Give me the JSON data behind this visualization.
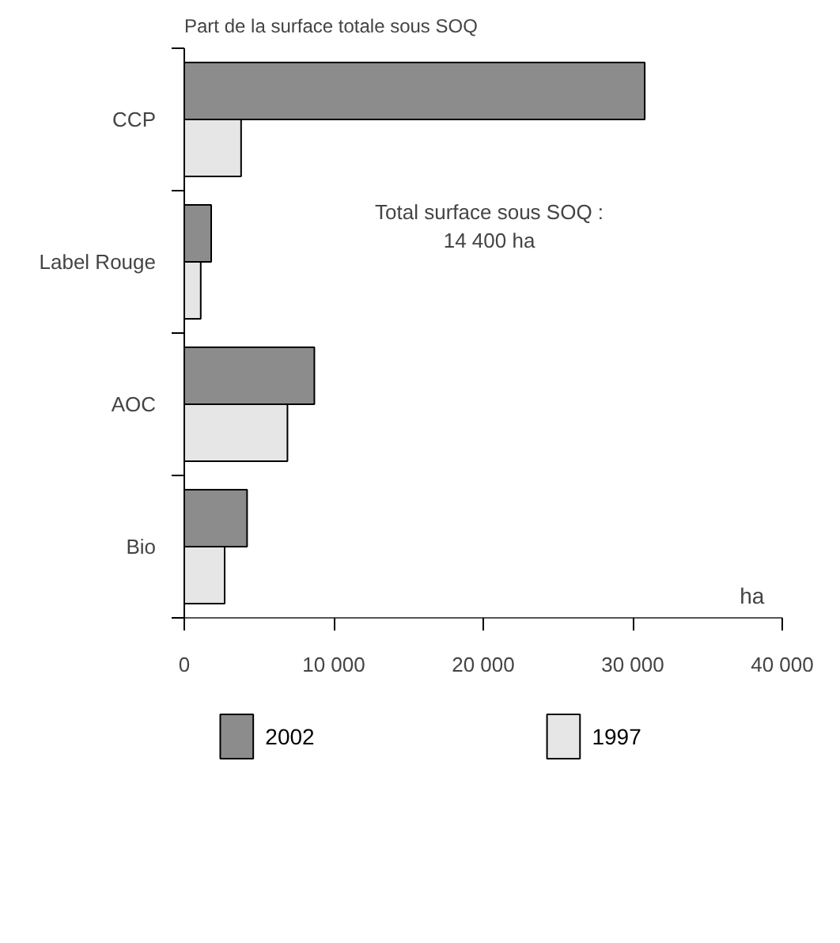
{
  "chart_data": {
    "type": "bar",
    "orientation": "horizontal",
    "title": "Part de la surface totale sous SOQ",
    "xlabel": "ha",
    "categories": [
      "CCP",
      "Label Rouge",
      "AOC",
      "Bio"
    ],
    "series": [
      {
        "name": "2002",
        "color": "#8c8c8c",
        "values": [
          30800,
          1800,
          8700,
          4200
        ]
      },
      {
        "name": "1997",
        "color": "#e6e6e6",
        "values": [
          3800,
          1100,
          6900,
          2700
        ]
      }
    ],
    "xlim": [
      0,
      40000
    ],
    "xticks": [
      0,
      {
        "value": 10000,
        "label": "10 000"
      },
      {
        "value": 20000,
        "label": "20 000"
      },
      {
        "value": 30000,
        "label": "30 000"
      },
      {
        "value": 40000,
        "label": "40 000"
      }
    ],
    "annotations": [
      "Total surface sous SOQ :\n14 400 ha"
    ],
    "legend": "bottom",
    "grid": false
  }
}
